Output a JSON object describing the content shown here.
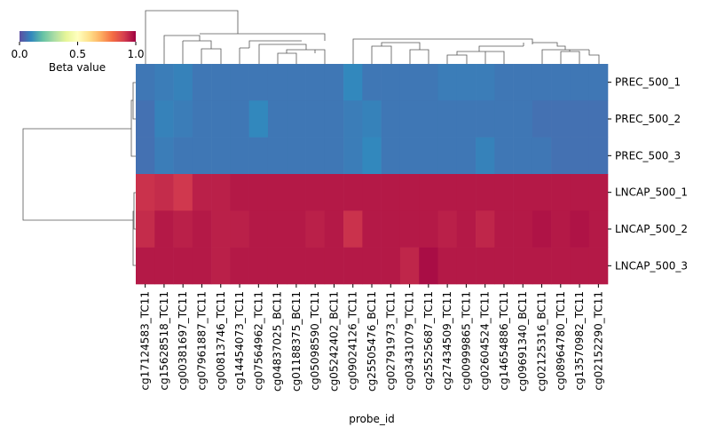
{
  "chart_data": {
    "type": "heatmap",
    "rows": [
      "PREC_500_1",
      "PREC_500_2",
      "PREC_500_3",
      "LNCAP_500_1",
      "LNCAP_500_2",
      "LNCAP_500_3"
    ],
    "columns": [
      "cg17124583_TC11",
      "cg15628518_TC11",
      "cg00381697_TC11",
      "cg07961887_TC11",
      "cg00813746_TC11",
      "cg14454073_TC11",
      "cg07564962_TC11",
      "cg04837025_BC11",
      "cg01188375_BC11",
      "cg05098590_TC11",
      "cg05242402_BC11",
      "cg09024126_TC11",
      "cg25505476_BC11",
      "cg02791973_TC11",
      "cg03431079_TC11",
      "cg25525687_TC11",
      "cg27434509_TC11",
      "cg00999865_TC11",
      "cg02604524_TC11",
      "cg14654886_TC11",
      "cg09691340_BC11",
      "cg02125316_BC11",
      "cg08964780_TC11",
      "cg13570982_TC11",
      "cg02152290_TC11"
    ],
    "values": [
      [
        0.07,
        0.08,
        0.09,
        0.07,
        0.07,
        0.07,
        0.07,
        0.07,
        0.07,
        0.07,
        0.07,
        0.1,
        0.07,
        0.07,
        0.07,
        0.07,
        0.08,
        0.08,
        0.08,
        0.07,
        0.07,
        0.07,
        0.07,
        0.07,
        0.07
      ],
      [
        0.06,
        0.09,
        0.08,
        0.07,
        0.07,
        0.07,
        0.1,
        0.07,
        0.07,
        0.07,
        0.07,
        0.08,
        0.09,
        0.07,
        0.07,
        0.07,
        0.07,
        0.07,
        0.07,
        0.07,
        0.07,
        0.06,
        0.06,
        0.06,
        0.06
      ],
      [
        0.06,
        0.08,
        0.07,
        0.07,
        0.07,
        0.07,
        0.07,
        0.07,
        0.07,
        0.07,
        0.07,
        0.08,
        0.1,
        0.07,
        0.07,
        0.07,
        0.07,
        0.07,
        0.09,
        0.07,
        0.07,
        0.07,
        0.06,
        0.06,
        0.06
      ],
      [
        0.92,
        0.93,
        0.91,
        0.95,
        0.95,
        0.96,
        0.96,
        0.96,
        0.96,
        0.96,
        0.96,
        0.96,
        0.96,
        0.96,
        0.96,
        0.96,
        0.96,
        0.96,
        0.96,
        0.96,
        0.96,
        0.96,
        0.96,
        0.96,
        0.96
      ],
      [
        0.93,
        0.96,
        0.95,
        0.96,
        0.95,
        0.95,
        0.96,
        0.96,
        0.96,
        0.95,
        0.96,
        0.92,
        0.96,
        0.96,
        0.96,
        0.96,
        0.95,
        0.96,
        0.94,
        0.96,
        0.96,
        0.97,
        0.96,
        0.97,
        0.96
      ],
      [
        0.96,
        0.96,
        0.96,
        0.96,
        0.95,
        0.96,
        0.96,
        0.96,
        0.96,
        0.96,
        0.96,
        0.96,
        0.96,
        0.96,
        0.94,
        0.98,
        0.96,
        0.96,
        0.96,
        0.96,
        0.96,
        0.96,
        0.96,
        0.96,
        0.96
      ]
    ],
    "xlabel": "probe_id",
    "colorbar_label": "Beta value",
    "clim": [
      0,
      1
    ],
    "cticks": [
      {
        "value": 0,
        "label": "0.0"
      },
      {
        "value": 0.5,
        "label": "0.5"
      },
      {
        "value": 1,
        "label": "1.0"
      }
    ],
    "colormap_colors": [
      "#5e4fa2",
      "#3288bd",
      "#66c2a5",
      "#abdda4",
      "#e6f598",
      "#ffffbf",
      "#fee08b",
      "#fdae61",
      "#f46d43",
      "#d53e4f",
      "#9e0142"
    ]
  }
}
